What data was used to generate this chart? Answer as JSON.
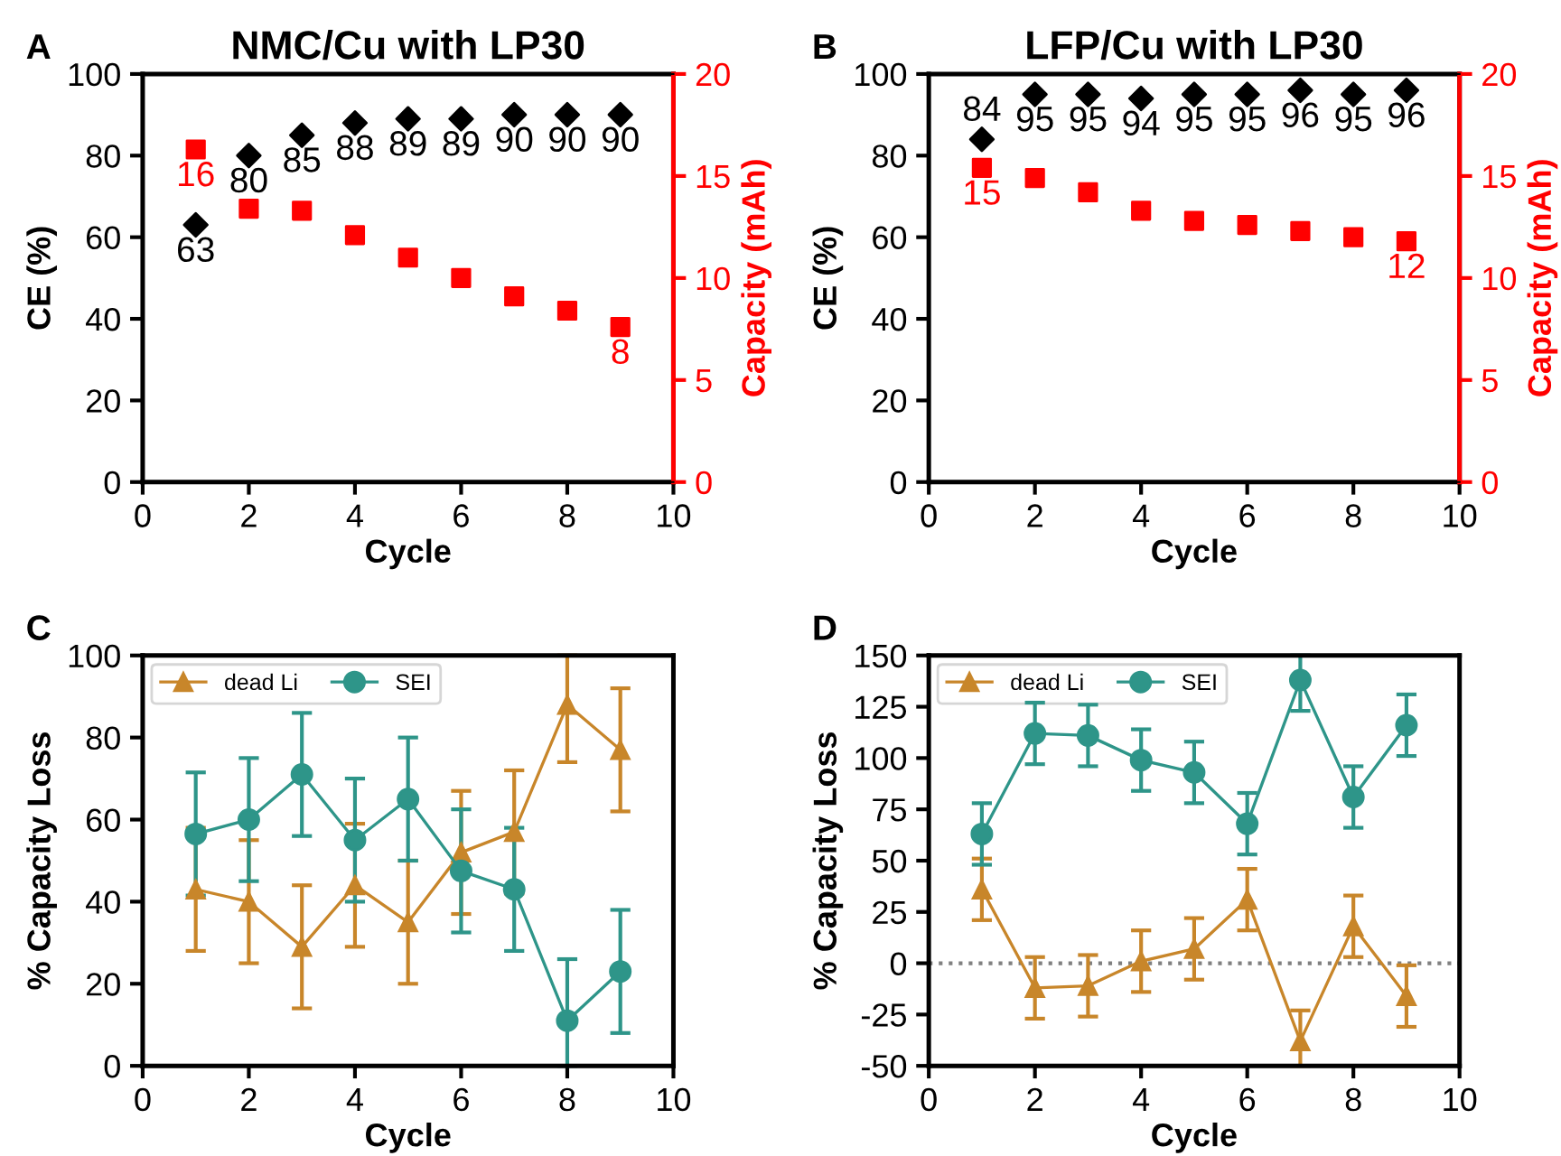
{
  "chart_data": [
    {
      "type": "scatter",
      "title": "NMC/Cu with LP30",
      "xlabel": "Cycle",
      "ylabel": "CE (%)",
      "y2label": "Capacity (mAh)",
      "annotations": [
        "A"
      ],
      "x": [
        1,
        2,
        3,
        4,
        5,
        6,
        7,
        8,
        9
      ],
      "xlim": [
        0,
        10
      ],
      "xticks": [
        0,
        2,
        4,
        6,
        8,
        10
      ],
      "ylim": [
        0,
        100
      ],
      "yticks": [
        0,
        20,
        40,
        60,
        80,
        100
      ],
      "y2lim": [
        0,
        20
      ],
      "y2ticks": [
        0,
        5,
        10,
        15,
        20
      ],
      "grid": false,
      "legend": false,
      "series": [
        {
          "color": "#000000",
          "marker": "diamond",
          "values": [
            63,
            80,
            85,
            88,
            89,
            89,
            90,
            90,
            90
          ],
          "value_labels": [
            "63",
            "80",
            "85",
            "88",
            "89",
            "89",
            "90",
            "90",
            "90"
          ]
        },
        {
          "color": "#ff0000",
          "marker": "square",
          "axis": "y2",
          "values": [
            16.3,
            13.4,
            13.3,
            12.1,
            11.0,
            10.0,
            9.1,
            8.4,
            7.6
          ],
          "value_labels": [
            "16",
            null,
            null,
            null,
            null,
            null,
            null,
            null,
            "8"
          ]
        }
      ]
    },
    {
      "type": "scatter",
      "title": "LFP/Cu with LP30",
      "xlabel": "Cycle",
      "ylabel": "CE (%)",
      "y2label": "Capacity (mAh)",
      "annotations": [
        "B"
      ],
      "x": [
        1,
        2,
        3,
        4,
        5,
        6,
        7,
        8,
        9
      ],
      "xlim": [
        0,
        10
      ],
      "xticks": [
        0,
        2,
        4,
        6,
        8,
        10
      ],
      "ylim": [
        0,
        100
      ],
      "yticks": [
        0,
        20,
        40,
        60,
        80,
        100
      ],
      "y2lim": [
        0,
        20
      ],
      "y2ticks": [
        0,
        5,
        10,
        15,
        20
      ],
      "grid": false,
      "legend": false,
      "series": [
        {
          "color": "#000000",
          "marker": "diamond",
          "values": [
            84,
            95,
            95,
            94,
            95,
            95,
            96,
            95,
            96
          ],
          "value_labels": [
            "84",
            "95",
            "95",
            "94",
            "95",
            "95",
            "96",
            "95",
            "96"
          ]
        },
        {
          "color": "#ff0000",
          "marker": "square",
          "axis": "y2",
          "values": [
            15.4,
            14.9,
            14.2,
            13.3,
            12.8,
            12.6,
            12.3,
            12.0,
            11.8
          ],
          "value_labels": [
            "15",
            null,
            null,
            null,
            null,
            null,
            null,
            null,
            "12"
          ]
        }
      ]
    },
    {
      "type": "line",
      "xlabel": "Cycle",
      "ylabel": "% Capacity Loss",
      "annotations": [
        "C"
      ],
      "x": [
        1,
        2,
        3,
        4,
        5,
        6,
        7,
        8,
        9
      ],
      "xlim": [
        0,
        10
      ],
      "xticks": [
        0,
        2,
        4,
        6,
        8,
        10
      ],
      "ylim": [
        0,
        100
      ],
      "yticks": [
        0,
        20,
        40,
        60,
        80,
        100
      ],
      "grid": false,
      "legend": "top left",
      "line_style": "solid",
      "series": [
        {
          "name": "dead Li",
          "color": "#c8862a",
          "marker": "triangle",
          "values": [
            43,
            40,
            29,
            44,
            35,
            52,
            57,
            88,
            77
          ],
          "errors": [
            15,
            15,
            15,
            15,
            15,
            15,
            15,
            [
              74,
              100
            ],
            15
          ]
        },
        {
          "name": "SEI",
          "color": "#2e9589",
          "marker": "circle",
          "values": [
            56.5,
            60,
            71,
            55,
            65,
            47.5,
            43,
            11,
            23
          ],
          "errors": [
            15,
            15,
            15,
            15,
            15,
            15,
            15,
            [
              0,
              26
            ],
            15
          ]
        }
      ]
    },
    {
      "type": "line",
      "xlabel": "Cycle",
      "ylabel": "% Capacity Loss",
      "annotations": [
        "D"
      ],
      "x": [
        1,
        2,
        3,
        4,
        5,
        6,
        7,
        8,
        9
      ],
      "xlim": [
        0,
        10
      ],
      "xticks": [
        0,
        2,
        4,
        6,
        8,
        10
      ],
      "ylim": [
        -50,
        150
      ],
      "yticks": [
        -50,
        -25,
        0,
        25,
        50,
        75,
        100,
        125,
        150
      ],
      "grid": false,
      "legend": "top left",
      "line_style": "solid",
      "ref_lines": [
        {
          "axis": "y",
          "value": 0,
          "color": "#808080",
          "line_style": "dotted"
        }
      ],
      "series": [
        {
          "name": "dead Li",
          "color": "#c8862a",
          "marker": "triangle",
          "values": [
            36,
            -12,
            -11,
            1,
            7,
            31,
            -38,
            18,
            -16
          ],
          "errors": [
            15,
            15,
            15,
            15,
            15,
            15,
            [
              -50,
              -23
            ],
            15,
            15
          ]
        },
        {
          "name": "SEI",
          "color": "#2e9589",
          "marker": "circle",
          "values": [
            63,
            112,
            111,
            99,
            93,
            68,
            138,
            81,
            116
          ],
          "errors": [
            15,
            15,
            15,
            15,
            15,
            15,
            [
              123,
              150
            ],
            15,
            15
          ]
        }
      ]
    }
  ]
}
